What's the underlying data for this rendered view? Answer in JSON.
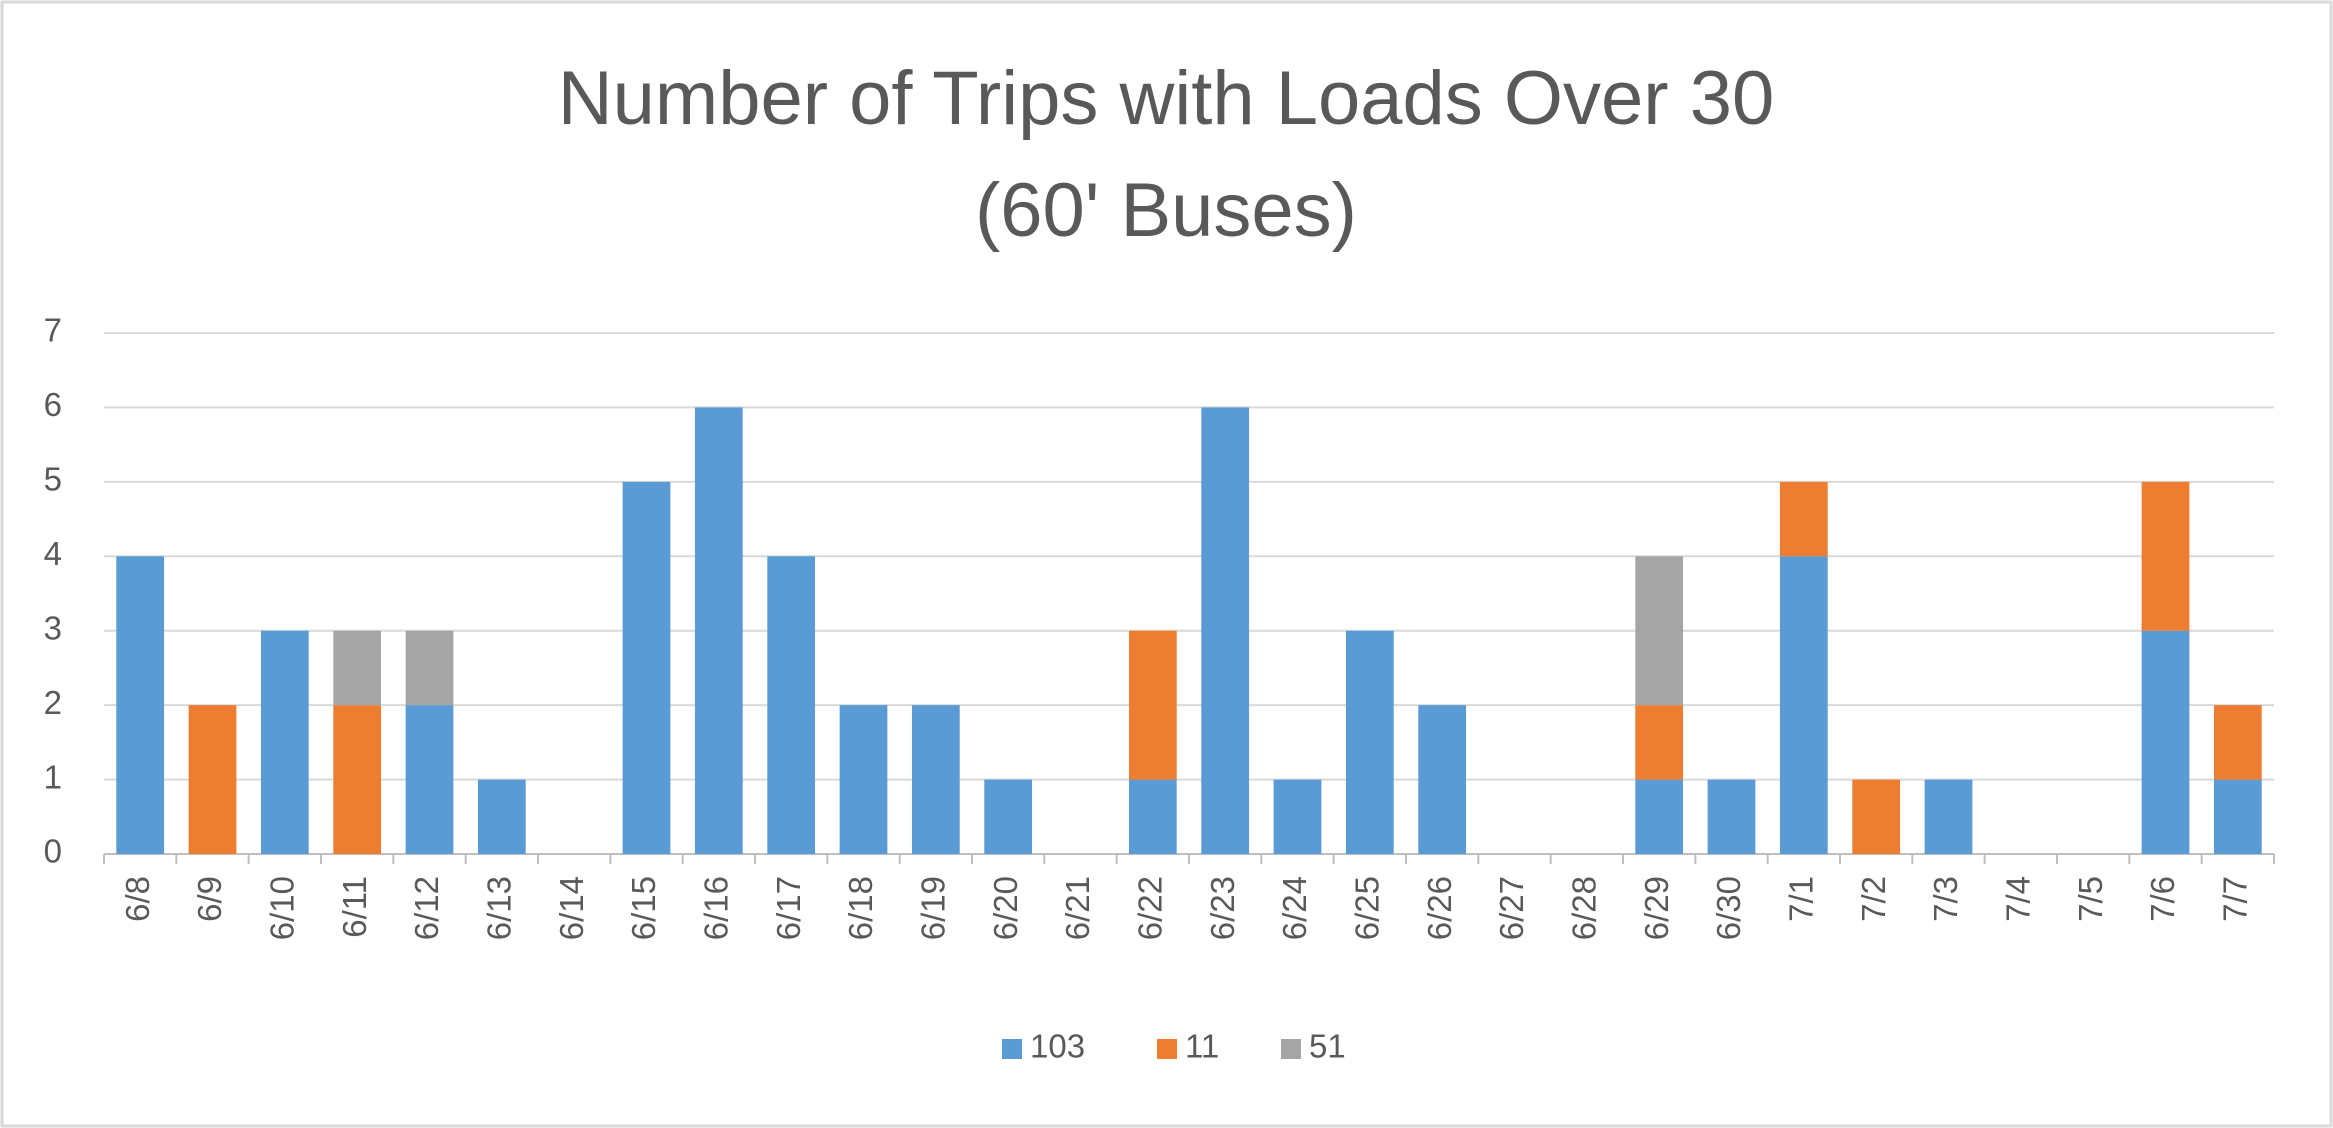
{
  "chart_data": {
    "type": "bar",
    "stacked": true,
    "title": "Number of Trips with Loads Over 30",
    "subtitle": "(60' Buses)",
    "categories": [
      "6/8",
      "6/9",
      "6/10",
      "6/11",
      "6/12",
      "6/13",
      "6/14",
      "6/15",
      "6/16",
      "6/17",
      "6/18",
      "6/19",
      "6/20",
      "6/21",
      "6/22",
      "6/23",
      "6/24",
      "6/25",
      "6/26",
      "6/27",
      "6/28",
      "6/29",
      "6/30",
      "7/1",
      "7/2",
      "7/3",
      "7/4",
      "7/5",
      "7/6",
      "7/7"
    ],
    "series": [
      {
        "name": "103",
        "color": "#5b9bd5",
        "values": [
          4,
          0,
          3,
          0,
          2,
          1,
          0,
          5,
          6,
          4,
          2,
          2,
          1,
          0,
          1,
          6,
          1,
          3,
          2,
          0,
          0,
          1,
          1,
          4,
          0,
          1,
          0,
          0,
          3,
          1
        ]
      },
      {
        "name": "11",
        "color": "#ed7d31",
        "values": [
          0,
          2,
          0,
          2,
          0,
          0,
          0,
          0,
          0,
          0,
          0,
          0,
          0,
          0,
          2,
          0,
          0,
          0,
          0,
          0,
          0,
          1,
          0,
          1,
          1,
          0,
          0,
          0,
          2,
          1
        ]
      },
      {
        "name": "51",
        "color": "#a5a5a5",
        "values": [
          0,
          0,
          0,
          1,
          1,
          0,
          0,
          0,
          0,
          0,
          0,
          0,
          0,
          0,
          0,
          0,
          0,
          0,
          0,
          0,
          0,
          2,
          0,
          0,
          0,
          0,
          0,
          0,
          0,
          0
        ]
      }
    ],
    "ylim": [
      0,
      7
    ],
    "yticks": [
      0,
      1,
      2,
      3,
      4,
      5,
      6,
      7
    ],
    "grid": true,
    "legend": "bottom"
  }
}
